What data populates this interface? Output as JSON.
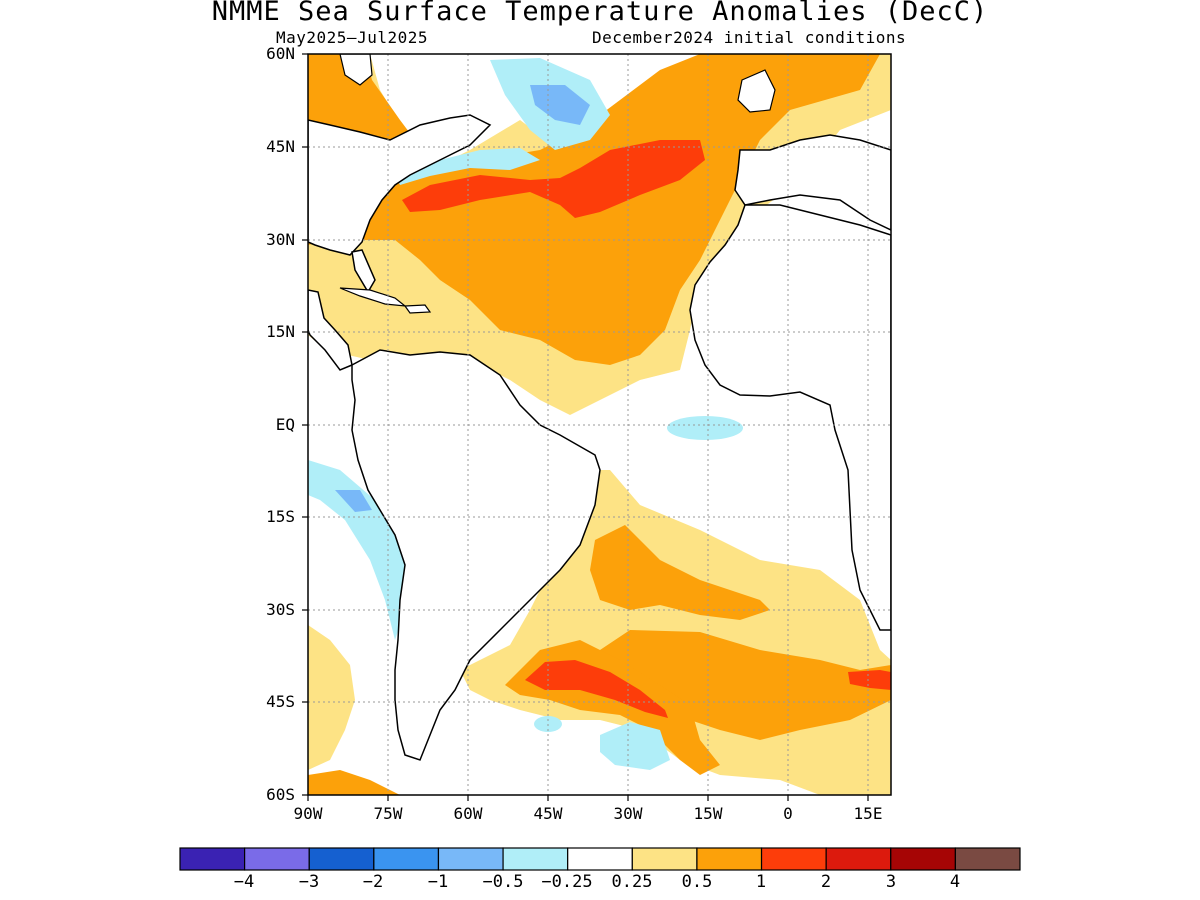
{
  "title": "NMME Sea Surface Temperature Anomalies (DecC)",
  "subtitle_left": "May2025–Jul2025",
  "subtitle_right": "December2024 initial conditions",
  "lat_labels": [
    "60N",
    "45N",
    "30N",
    "15N",
    "EQ",
    "15S",
    "30S",
    "45S",
    "60S"
  ],
  "lon_labels": [
    "90W",
    "75W",
    "60W",
    "45W",
    "30W",
    "15W",
    "0",
    "15E"
  ],
  "colorbar": {
    "colors": [
      "#3a22b3",
      "#7a6be8",
      "#1560d0",
      "#3a94f0",
      "#78b8f8",
      "#b0eef8",
      "#ffffff",
      "#fde385",
      "#fca10a",
      "#fd3d0a",
      "#dc1a0d",
      "#a60505",
      "#7a4a42"
    ],
    "labels": [
      "−4",
      "−3",
      "−2",
      "−1",
      "−0.5",
      "−0.25",
      "0.25",
      "0.5",
      "1",
      "2",
      "3",
      "4"
    ]
  },
  "map_data": {
    "region": "Atlantic Ocean, 90W–19E, 60S–60N",
    "variable": "Sea surface temperature anomaly",
    "units": "DecC",
    "lon_range": [
      -90,
      19
    ],
    "lat_range": [
      -60,
      60
    ],
    "grid": true
  }
}
